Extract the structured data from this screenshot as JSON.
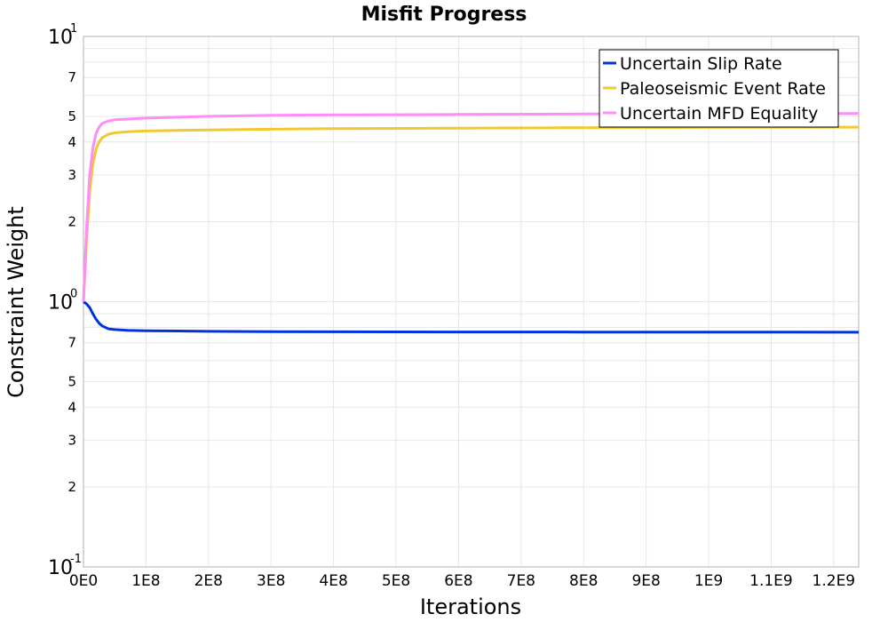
{
  "chart_data": {
    "type": "line",
    "title": "Misfit Progress",
    "xlabel": "Iterations",
    "ylabel": "Constraint Weight",
    "y_scale": "log",
    "xlim": [
      0,
      1240000000
    ],
    "ylim": [
      0.1,
      10
    ],
    "grid": true,
    "legend_position": "top-right",
    "x_tick_values": [
      0,
      100000000,
      200000000,
      300000000,
      400000000,
      500000000,
      600000000,
      700000000,
      800000000,
      900000000,
      1000000000,
      1100000000,
      1200000000
    ],
    "x_tick_labels": [
      "0E0",
      "1E8",
      "2E8",
      "3E8",
      "4E8",
      "5E8",
      "6E8",
      "7E8",
      "8E8",
      "9E8",
      "1E9",
      "1.1E9",
      "1.2E9"
    ],
    "y_major_ticks": [
      {
        "value": 0.1,
        "base": "10",
        "exp": "-1"
      },
      {
        "value": 1,
        "base": "10",
        "exp": "0"
      },
      {
        "value": 10,
        "base": "10",
        "exp": "1"
      }
    ],
    "y_minor_ticks": [
      {
        "value": 0.2,
        "label": "2"
      },
      {
        "value": 0.3,
        "label": "3"
      },
      {
        "value": 0.4,
        "label": "4"
      },
      {
        "value": 0.5,
        "label": "5"
      },
      {
        "value": 0.7,
        "label": "7"
      },
      {
        "value": 2,
        "label": "2"
      },
      {
        "value": 3,
        "label": "3"
      },
      {
        "value": 4,
        "label": "4"
      },
      {
        "value": 5,
        "label": "5"
      },
      {
        "value": 7,
        "label": "7"
      }
    ],
    "series": [
      {
        "name": "Uncertain Slip Rate",
        "color": "#0033dd",
        "x": [
          0,
          5000000,
          10000000,
          15000000,
          20000000,
          25000000,
          30000000,
          40000000,
          50000000,
          70000000,
          100000000,
          150000000,
          200000000,
          300000000,
          400000000,
          600000000,
          800000000,
          1000000000,
          1240000000
        ],
        "y": [
          1.0,
          0.98,
          0.95,
          0.9,
          0.86,
          0.83,
          0.81,
          0.79,
          0.785,
          0.78,
          0.777,
          0.775,
          0.773,
          0.771,
          0.77,
          0.769,
          0.768,
          0.768,
          0.767
        ]
      },
      {
        "name": "Paleoseismic Event Rate",
        "color": "#f2c830",
        "x": [
          0,
          5000000,
          10000000,
          15000000,
          20000000,
          25000000,
          30000000,
          40000000,
          50000000,
          70000000,
          100000000,
          150000000,
          200000000,
          300000000,
          400000000,
          600000000,
          800000000,
          1000000000,
          1240000000
        ],
        "y": [
          1.0,
          1.7,
          2.6,
          3.3,
          3.75,
          4.0,
          4.15,
          4.28,
          4.33,
          4.37,
          4.4,
          4.42,
          4.44,
          4.47,
          4.49,
          4.51,
          4.53,
          4.54,
          4.55
        ]
      },
      {
        "name": "Uncertain MFD Equality",
        "color": "#ff8cf8",
        "x": [
          0,
          5000000,
          10000000,
          15000000,
          20000000,
          25000000,
          30000000,
          40000000,
          50000000,
          70000000,
          100000000,
          150000000,
          200000000,
          300000000,
          400000000,
          600000000,
          800000000,
          1000000000,
          1240000000
        ],
        "y": [
          1.0,
          1.9,
          3.0,
          3.8,
          4.3,
          4.55,
          4.7,
          4.8,
          4.85,
          4.88,
          4.92,
          4.96,
          5.0,
          5.04,
          5.06,
          5.08,
          5.1,
          5.11,
          5.12
        ]
      }
    ]
  }
}
